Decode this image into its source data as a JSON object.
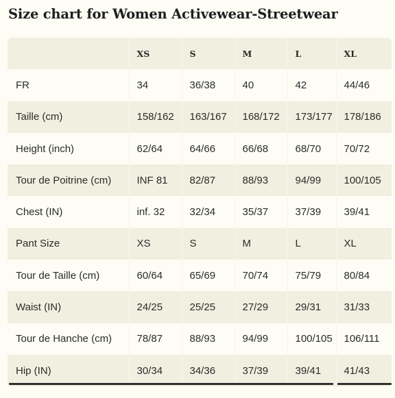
{
  "page": {
    "title": "Size chart for Women Activewear-Streetwear"
  },
  "table": {
    "headers": [
      "",
      "XS",
      "S",
      "M",
      "L",
      "XL"
    ],
    "rows": [
      [
        "FR",
        "34",
        "36/38",
        "40",
        "42",
        "44/46"
      ],
      [
        "Taille (cm)",
        "158/162",
        "163/167",
        "168/172",
        "173/177",
        "178/186"
      ],
      [
        "Height (inch)",
        "62/64",
        "64/66",
        "66/68",
        "68/70",
        "70/72"
      ],
      [
        "Tour de Poitrine (cm)",
        "INF 81",
        "82/87",
        "88/93",
        "94/99",
        "100/105"
      ],
      [
        "Chest (IN)",
        "inf. 32",
        "32/34",
        "35/37",
        "37/39",
        "39/41"
      ],
      [
        "Pant Size",
        "XS",
        "S",
        "M",
        "L",
        "XL"
      ],
      [
        "Tour de Taille (cm)",
        "60/64",
        "65/69",
        "70/74",
        "75/79",
        "80/84"
      ],
      [
        "Waist (IN)",
        "24/25",
        "25/25",
        "27/29",
        "29/31",
        "31/33"
      ],
      [
        "Tour de Hanche (cm)",
        "78/87",
        "88/93",
        "94/99",
        "100/105",
        "106/111"
      ],
      [
        "Hip (IN)",
        "30/34",
        "34/36",
        "37/39",
        "39/41",
        "41/43"
      ]
    ]
  }
}
